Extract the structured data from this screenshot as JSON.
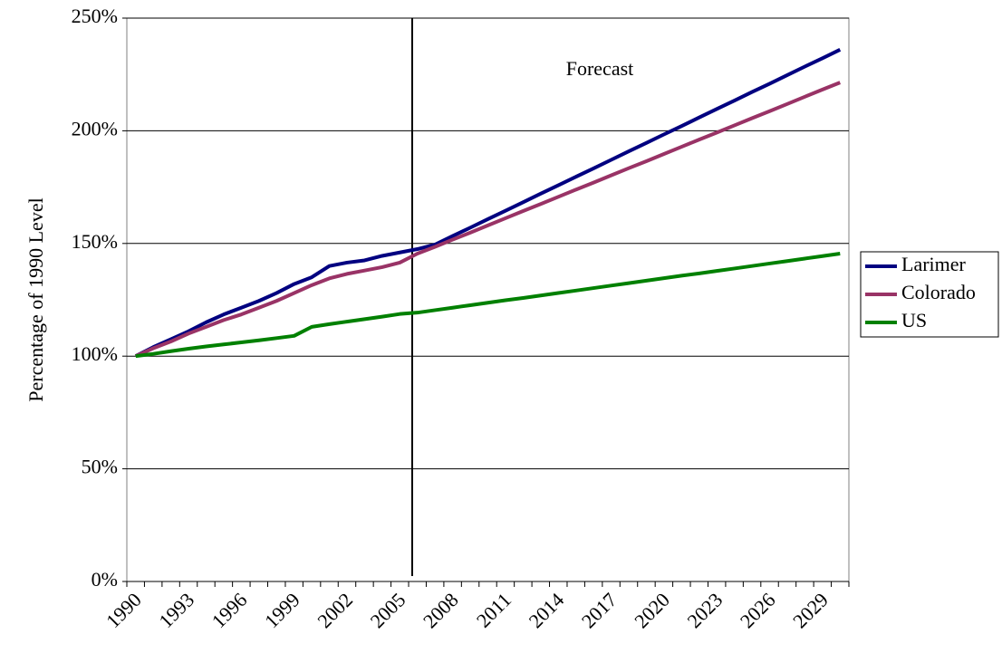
{
  "chart_data": {
    "type": "line",
    "y_axis_label": "Percentage of 1990 Level",
    "annotation": "Forecast",
    "categories": [
      "1990",
      null,
      null,
      "1993",
      null,
      null,
      "1996",
      null,
      null,
      "1999",
      null,
      null,
      "2002",
      null,
      null,
      "2005",
      null,
      null,
      "2008",
      null,
      null,
      "2011",
      null,
      null,
      "2014",
      null,
      null,
      "2017",
      null,
      null,
      "2020",
      null,
      null,
      "2023",
      null,
      null,
      "2026",
      null,
      null,
      "2029",
      null
    ],
    "series": [
      {
        "name": "Larimer",
        "color": "#000080",
        "values": [
          100,
          104,
          107.5,
          111,
          115,
          118.5,
          121.5,
          124.5,
          128,
          132,
          135,
          140,
          141.5,
          142.5,
          144.5,
          146,
          147.5,
          149.5,
          153.3,
          157.0,
          160.8,
          164.5,
          168.3,
          172.1,
          175.8,
          179.6,
          183.3,
          187.1,
          190.9,
          194.6,
          198.4,
          202.1,
          205.9,
          209.7,
          213.4,
          217.2,
          220.9,
          224.7,
          228.5,
          232.2,
          236.0
        ]
      },
      {
        "name": "Colorado",
        "color": "#993366",
        "values": [
          100,
          103.5,
          106.5,
          110,
          113,
          116,
          118.5,
          121.5,
          124.5,
          128,
          131.5,
          134.5,
          136.5,
          138,
          139.5,
          141.5,
          145.5,
          148.5,
          151.7,
          154.8,
          158.0,
          161.2,
          164.4,
          167.5,
          170.7,
          173.9,
          177.0,
          180.2,
          183.4,
          186.5,
          189.7,
          192.9,
          196.1,
          199.2,
          202.4,
          205.6,
          208.7,
          211.9,
          215.1,
          218.3,
          221.4
        ]
      },
      {
        "name": "US",
        "color": "#008000",
        "values": [
          100,
          101,
          102.2,
          103.3,
          104.3,
          105.2,
          106.1,
          107,
          108,
          109,
          113,
          114.2,
          115.3,
          116.4,
          117.5,
          118.7,
          119.3,
          120.4,
          121.5,
          122.6,
          123.7,
          124.8,
          125.8,
          126.9,
          128.0,
          129.1,
          130.2,
          131.3,
          132.4,
          133.5,
          134.6,
          135.7,
          136.7,
          137.8,
          138.9,
          140.0,
          141.1,
          142.2,
          143.3,
          144.4,
          145.5
        ]
      }
    ],
    "ylim": [
      0,
      250
    ],
    "yticks": [
      {
        "value": 0,
        "label": "0%"
      },
      {
        "value": 50,
        "label": "50%"
      },
      {
        "value": 100,
        "label": "100%"
      },
      {
        "value": 150,
        "label": "150%"
      },
      {
        "value": 200,
        "label": "200%"
      },
      {
        "value": 250,
        "label": "250%"
      }
    ],
    "grid": true,
    "legend": "right"
  }
}
